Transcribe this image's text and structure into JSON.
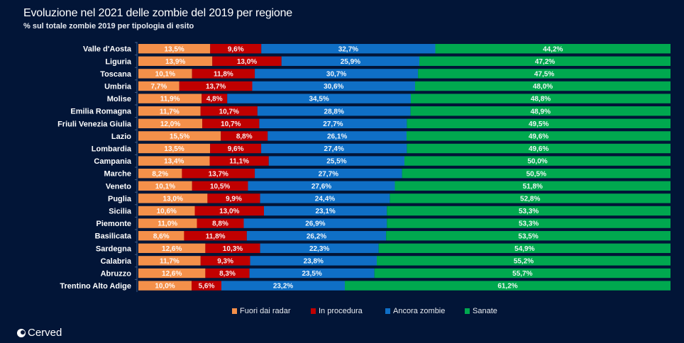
{
  "header": {
    "title": "Evoluzione nel 2021 delle zombie del 2019  per regione",
    "subtitle": "% sul totale zombie 2019 per tipologia di esito"
  },
  "brand": {
    "name": "Cerved"
  },
  "chart_data": {
    "type": "bar",
    "orientation": "horizontal",
    "stacked": true,
    "normalized_percent": true,
    "title": "Evoluzione nel 2021 delle zombie del 2019  per regione",
    "subtitle": "% sul totale zombie 2019 per tipologia di esito",
    "xlabel": "",
    "ylabel": "",
    "xlim": [
      0,
      100
    ],
    "grid": false,
    "legend_position": "bottom",
    "categories": [
      "Valle d'Aosta",
      "Liguria",
      "Toscana",
      "Umbria",
      "Molise",
      "Emilia Romagna",
      "Friuli Venezia Giulia",
      "Lazio",
      "Lombardia",
      "Campania",
      "Marche",
      "Veneto",
      "Puglia",
      "Sicilia",
      "Piemonte",
      "Basilicata",
      "Sardegna",
      "Calabria",
      "Abruzzo",
      "Trentino Alto Adige"
    ],
    "series": [
      {
        "name": "Fuori dai radar",
        "color": "#f4904a",
        "values": [
          13.5,
          13.9,
          10.1,
          7.7,
          11.9,
          11.7,
          12.0,
          15.5,
          13.5,
          13.4,
          8.2,
          10.1,
          13.0,
          10.6,
          11.0,
          8.6,
          12.6,
          11.7,
          12.6,
          10.0
        ],
        "labels": [
          "13,5%",
          "13,9%",
          "10,1%",
          "7,7%",
          "11,9%",
          "11,7%",
          "12,0%",
          "15,5%",
          "13,5%",
          "13,4%",
          "8,2%",
          "10,1%",
          "13,0%",
          "10,6%",
          "11,0%",
          "8,6%",
          "12,6%",
          "11,7%",
          "12,6%",
          "10,0%"
        ]
      },
      {
        "name": "In procedura",
        "color": "#c00000",
        "values": [
          9.6,
          13.0,
          11.8,
          13.7,
          4.8,
          10.7,
          10.7,
          8.8,
          9.6,
          11.1,
          13.7,
          10.5,
          9.9,
          13.0,
          8.8,
          11.8,
          10.3,
          9.3,
          8.3,
          5.6
        ],
        "labels": [
          "9,6%",
          "13,0%",
          "11,8%",
          "13,7%",
          "4,8%",
          "10,7%",
          "10,7%",
          "8,8%",
          "9,6%",
          "11,1%",
          "13,7%",
          "10,5%",
          "9,9%",
          "13,0%",
          "8,8%",
          "11,8%",
          "10,3%",
          "9,3%",
          "8,3%",
          "5,6%"
        ]
      },
      {
        "name": "Ancora zombie",
        "color": "#0f6fc6",
        "values": [
          32.7,
          25.9,
          30.7,
          30.6,
          34.5,
          28.8,
          27.7,
          26.1,
          27.4,
          25.5,
          27.7,
          27.6,
          24.4,
          23.1,
          26.9,
          26.2,
          22.3,
          23.8,
          23.5,
          23.2
        ],
        "labels": [
          "32,7%",
          "25,9%",
          "30,7%",
          "30,6%",
          "34,5%",
          "28,8%",
          "27,7%",
          "26,1%",
          "27,4%",
          "25,5%",
          "27,7%",
          "27,6%",
          "24,4%",
          "23,1%",
          "26,9%",
          "26,2%",
          "22,3%",
          "23,8%",
          "23,5%",
          "23,2%"
        ]
      },
      {
        "name": "Sanate",
        "color": "#00a84f",
        "values": [
          44.2,
          47.2,
          47.5,
          48.0,
          48.8,
          48.9,
          49.5,
          49.6,
          49.6,
          50.0,
          50.5,
          51.8,
          52.8,
          53.3,
          53.3,
          53.5,
          54.9,
          55.2,
          55.7,
          61.2
        ],
        "labels": [
          "44,2%",
          "47,2%",
          "47,5%",
          "48,0%",
          "48,8%",
          "48,9%",
          "49,5%",
          "49,6%",
          "49,6%",
          "50,0%",
          "50,5%",
          "51,8%",
          "52,8%",
          "53,3%",
          "53,3%",
          "53,5%",
          "54,9%",
          "55,2%",
          "55,7%",
          "61,2%"
        ]
      }
    ]
  }
}
